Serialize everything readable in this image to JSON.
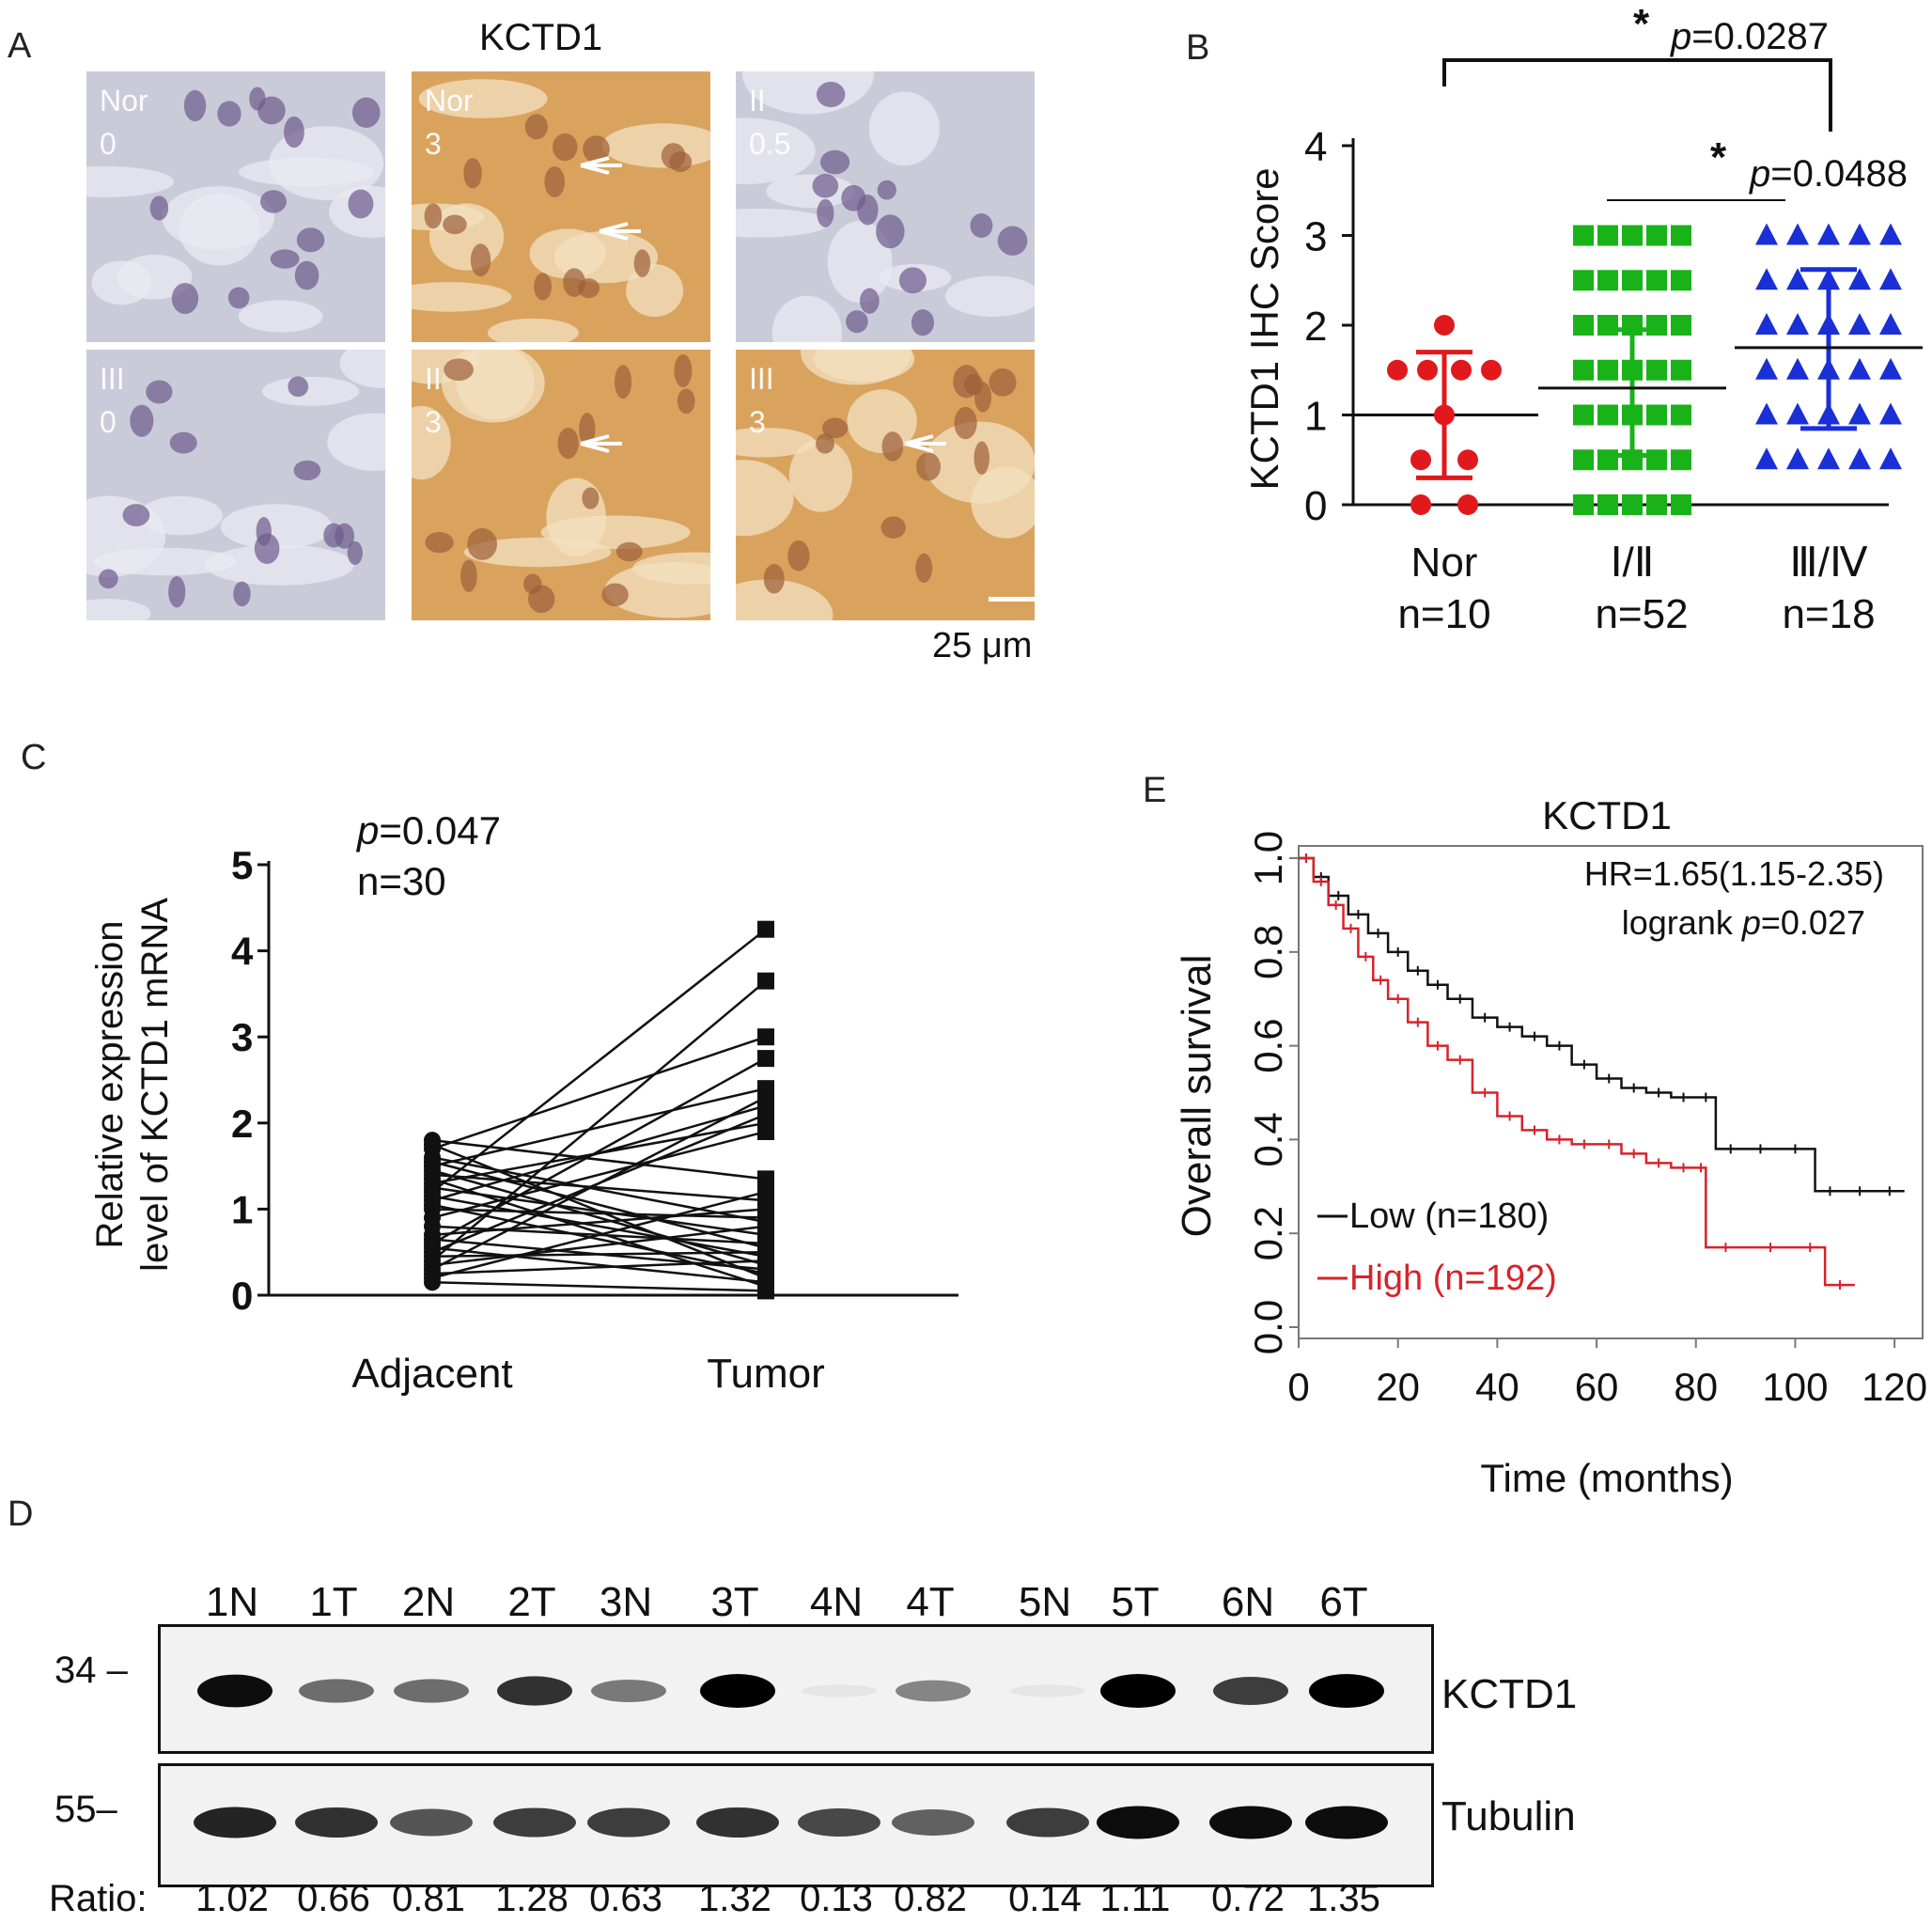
{
  "panel_letters": {
    "a": "A",
    "b": "B",
    "c": "C",
    "d": "D",
    "e": "E"
  },
  "panel_a": {
    "title": "KCTD1",
    "scale_bar": "25 μm",
    "tiles": [
      {
        "grade": "Nor",
        "score": "0",
        "stain": "low",
        "arrows": 0
      },
      {
        "grade": "Nor",
        "score": "3",
        "stain": "high",
        "arrows": 2
      },
      {
        "grade": "II",
        "score": "0.5",
        "stain": "low",
        "arrows": 0
      },
      {
        "grade": "III",
        "score": "0",
        "stain": "low",
        "arrows": 0
      },
      {
        "grade": "II",
        "score": "3",
        "stain": "high",
        "arrows": 1
      },
      {
        "grade": "III",
        "score": "3",
        "stain": "high",
        "arrows": 1
      }
    ],
    "colors": {
      "low": "#c9cbd9",
      "high": "#d9a35e",
      "nucleus": "#6e5a8c"
    }
  },
  "chart_data": [
    {
      "panel": "B",
      "type": "scatter",
      "ylabel": "KCTD1 IHC Score",
      "ylim": [
        0,
        4
      ],
      "yticks": [
        "0",
        "1",
        "2",
        "3",
        "4"
      ],
      "categories": [
        {
          "name": "Nor",
          "n_label": "n=10",
          "color": "#e0191d",
          "marker": "circle",
          "mean": 1.0,
          "sd_low": 0.3,
          "sd_high": 1.7
        },
        {
          "name": "Ⅰ/Ⅱ",
          "n_label": "n=52",
          "color": "#19b319",
          "marker": "square",
          "mean": 1.3,
          "sd_low": 0.55,
          "sd_high": 1.95
        },
        {
          "name": "Ⅲ/Ⅳ",
          "n_label": "n=18",
          "color": "#1a2fd6",
          "marker": "triangle",
          "mean": 1.75,
          "sd_low": 0.85,
          "sd_high": 2.62
        }
      ],
      "points": [
        [
          0,
          2.0
        ],
        [
          0,
          1.5
        ],
        [
          0,
          1.5
        ],
        [
          0,
          1.5
        ],
        [
          0,
          1.5
        ],
        [
          0,
          1.0
        ],
        [
          0,
          0.5
        ],
        [
          0,
          0.5
        ],
        [
          0,
          0.0
        ],
        [
          0,
          0.0
        ],
        [
          1,
          3.0
        ],
        [
          1,
          2.5
        ],
        [
          1,
          2.0
        ],
        [
          1,
          1.5
        ],
        [
          1,
          1.0
        ],
        [
          1,
          0.5
        ],
        [
          1,
          0.0
        ],
        [
          2,
          3.0
        ],
        [
          2,
          2.5
        ],
        [
          2,
          2.0
        ],
        [
          2,
          1.5
        ],
        [
          2,
          1.0
        ],
        [
          2,
          0.5
        ]
      ],
      "annotations": [
        {
          "star": "*",
          "p": "p",
          "text": "=0.0287"
        },
        {
          "star": "*",
          "p": "p",
          "text": "=0.0488"
        }
      ]
    },
    {
      "panel": "C",
      "type": "line",
      "ylabel": "Relative expression level of KCTD1 mRNA",
      "ylabel_lines": [
        "Relative expression",
        "level of KCTD1 mRNA"
      ],
      "categories": [
        "Adjacent",
        "Tumor"
      ],
      "ylim": [
        0,
        5
      ],
      "yticks": [
        "0",
        "1",
        "2",
        "3",
        "4",
        "5"
      ],
      "stats_p": "p",
      "stats_p_value": "=0.047",
      "stats_n": "n=30",
      "pairs": [
        [
          1.2,
          4.25
        ],
        [
          0.4,
          3.65
        ],
        [
          1.7,
          3.0
        ],
        [
          0.6,
          2.75
        ],
        [
          1.5,
          2.4
        ],
        [
          0.3,
          2.3
        ],
        [
          1.1,
          2.2
        ],
        [
          0.5,
          2.1
        ],
        [
          1.3,
          2.0
        ],
        [
          0.9,
          1.9
        ],
        [
          1.8,
          1.35
        ],
        [
          0.2,
          1.2
        ],
        [
          1.4,
          1.1
        ],
        [
          0.7,
          1.0
        ],
        [
          1.0,
          0.9
        ],
        [
          1.6,
          0.85
        ],
        [
          0.35,
          0.8
        ],
        [
          1.25,
          0.7
        ],
        [
          0.8,
          0.6
        ],
        [
          1.55,
          0.55
        ],
        [
          0.45,
          0.5
        ],
        [
          1.15,
          0.45
        ],
        [
          0.25,
          0.4
        ],
        [
          1.45,
          0.35
        ],
        [
          0.65,
          0.3
        ],
        [
          1.05,
          0.25
        ],
        [
          1.75,
          0.2
        ],
        [
          0.55,
          0.15
        ],
        [
          1.35,
          0.1
        ],
        [
          0.15,
          0.05
        ]
      ]
    },
    {
      "panel": "E",
      "type": "line",
      "title": "KCTD1",
      "xlabel": "Time (months)",
      "ylabel": "Overall  survival",
      "xlim": [
        0,
        120
      ],
      "ylim": [
        0,
        1.0
      ],
      "xticks": [
        "0",
        "20",
        "40",
        "60",
        "80",
        "100",
        "120"
      ],
      "yticks": [
        "0.0",
        "0.2",
        "0.4",
        "0.6",
        "0.8",
        "1.0"
      ],
      "hr": "HR=1.65(1.15-2.35)",
      "logrank_prefix": "logrank ",
      "logrank_p": "p",
      "logrank_value": "=0.027",
      "series": [
        {
          "name": "Low (n=180)",
          "color": "#111111",
          "x": [
            0,
            3,
            6,
            10,
            14,
            18,
            22,
            26,
            30,
            35,
            40,
            45,
            50,
            55,
            60,
            65,
            70,
            75,
            80,
            84,
            84,
            90,
            96,
            104,
            104,
            110,
            116,
            122
          ],
          "y": [
            1.0,
            0.96,
            0.92,
            0.88,
            0.84,
            0.8,
            0.76,
            0.73,
            0.7,
            0.66,
            0.64,
            0.62,
            0.6,
            0.56,
            0.53,
            0.51,
            0.5,
            0.49,
            0.49,
            0.49,
            0.38,
            0.38,
            0.38,
            0.38,
            0.29,
            0.29,
            0.29,
            0.29
          ]
        },
        {
          "name": "High (n=192)",
          "color": "#d8222a",
          "x": [
            0,
            3,
            6,
            9,
            12,
            15,
            18,
            22,
            26,
            30,
            35,
            40,
            45,
            50,
            55,
            60,
            65,
            70,
            75,
            80,
            82,
            82,
            90,
            100,
            106,
            106,
            112
          ],
          "y": [
            1.0,
            0.95,
            0.9,
            0.85,
            0.79,
            0.74,
            0.7,
            0.65,
            0.6,
            0.57,
            0.5,
            0.45,
            0.42,
            0.4,
            0.39,
            0.39,
            0.37,
            0.35,
            0.34,
            0.34,
            0.34,
            0.17,
            0.17,
            0.17,
            0.17,
            0.09,
            0.09
          ]
        }
      ]
    },
    {
      "panel": "D",
      "type": "table",
      "lanes": [
        "1N",
        "1T",
        "2N",
        "2T",
        "3N",
        "3T",
        "4N",
        "4T",
        "5N",
        "5T",
        "6N",
        "6T"
      ],
      "ratio_label": "Ratio:",
      "ratios": [
        "1.02",
        "0.66",
        "0.81",
        "1.28",
        "0.63",
        "1.32",
        "0.13",
        "0.82",
        "0.14",
        "1.11",
        "0.72",
        "1.35"
      ],
      "kctd1_intensity": [
        0.95,
        0.55,
        0.55,
        0.8,
        0.5,
        1.0,
        0.05,
        0.45,
        0.05,
        1.0,
        0.75,
        1.0
      ],
      "tubulin_intensity": [
        0.85,
        0.8,
        0.65,
        0.75,
        0.75,
        0.8,
        0.7,
        0.6,
        0.75,
        0.95,
        0.95,
        0.95
      ],
      "blots": [
        {
          "label": "KCTD1",
          "marker": "34 –"
        },
        {
          "label": "Tubulin",
          "marker": "55–"
        }
      ]
    }
  ]
}
